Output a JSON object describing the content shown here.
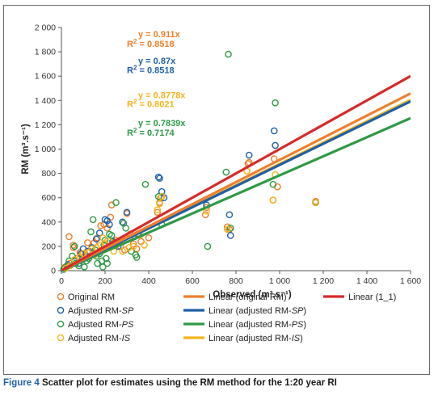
{
  "caption": {
    "figure_label": "Figure 4",
    "text": "Scatter plot for estimates using the RM method for the 1:20 year RI"
  },
  "chart_data": {
    "type": "scatter",
    "xlabel": "Observed (m³.s⁻¹)",
    "ylabel": "RM (m³.s⁻¹)",
    "xlim": [
      0,
      1600
    ],
    "ylim": [
      0,
      2000
    ],
    "x_ticks": [
      0,
      200,
      400,
      600,
      800,
      1000,
      1200,
      1400,
      1600
    ],
    "x_tick_labels": [
      "0",
      "200",
      "400",
      "600",
      "800",
      "1 000",
      "1 200",
      "1 400",
      "1 600"
    ],
    "y_ticks": [
      0,
      200,
      400,
      600,
      800,
      1000,
      1200,
      1400,
      1600,
      1800,
      2000
    ],
    "y_tick_labels": [
      "0",
      "200",
      "400",
      "600",
      "800",
      "1 000",
      "1 200",
      "1 400",
      "1 600",
      "1 800",
      "2 000"
    ],
    "grid": false,
    "legend_position": "bottom",
    "colors": {
      "original": "#ee7f2d",
      "sp": "#1f5fa6",
      "ps": "#2f9a46",
      "is": "#f4b41c",
      "line_1_1": "#d62b2b",
      "frame": "#6a6a6a"
    },
    "annotations": [
      {
        "eq": "y = 0.911x",
        "r2_label": "R",
        "r2_sup": "2",
        "r2_val": " = 0.8518",
        "series": "original"
      },
      {
        "eq": "y = 0.87x",
        "r2_label": "R",
        "r2_sup": "2",
        "r2_val": " = 0.8518",
        "series": "sp"
      },
      {
        "eq": "y = 0.8778x",
        "r2_label": "R",
        "r2_sup": "2",
        "r2_val": " = 0.8021",
        "series": "is"
      },
      {
        "eq": "y = 0.7839x",
        "r2_label": "R",
        "r2_sup": "2",
        "r2_val": " = 0.7174",
        "series": "ps"
      }
    ],
    "series": [
      {
        "name": "Original RM",
        "key": "original",
        "points": [
          [
            12,
            25
          ],
          [
            25,
            40
          ],
          [
            40,
            60
          ],
          [
            55,
            190
          ],
          [
            70,
            100
          ],
          [
            85,
            150
          ],
          [
            95,
            140
          ],
          [
            110,
            130
          ],
          [
            130,
            160
          ],
          [
            150,
            230
          ],
          [
            165,
            270
          ],
          [
            180,
            370
          ],
          [
            195,
            380
          ],
          [
            210,
            350
          ],
          [
            225,
            440
          ],
          [
            230,
            540
          ],
          [
            250,
            250
          ],
          [
            270,
            200
          ],
          [
            290,
            170
          ],
          [
            300,
            470
          ],
          [
            315,
            300
          ],
          [
            330,
            220
          ],
          [
            345,
            180
          ],
          [
            365,
            240
          ],
          [
            400,
            270
          ],
          [
            440,
            480
          ],
          [
            450,
            560
          ],
          [
            455,
            600
          ],
          [
            660,
            460
          ],
          [
            665,
            520
          ],
          [
            760,
            360
          ],
          [
            770,
            340
          ],
          [
            855,
            880
          ],
          [
            860,
            890
          ],
          [
            970,
            580
          ],
          [
            975,
            920
          ],
          [
            990,
            690
          ],
          [
            1165,
            570
          ],
          [
            35,
            280
          ],
          [
            55,
            210
          ],
          [
            120,
            230
          ]
        ]
      },
      {
        "name": "Adjusted RM-SP",
        "key": "sp",
        "points": [
          [
            15,
            20
          ],
          [
            30,
            50
          ],
          [
            60,
            80
          ],
          [
            80,
            60
          ],
          [
            100,
            180
          ],
          [
            120,
            160
          ],
          [
            140,
            190
          ],
          [
            160,
            260
          ],
          [
            175,
            310
          ],
          [
            200,
            420
          ],
          [
            210,
            410
          ],
          [
            235,
            240
          ],
          [
            260,
            200
          ],
          [
            280,
            400
          ],
          [
            300,
            480
          ],
          [
            335,
            280
          ],
          [
            350,
            300
          ],
          [
            445,
            770
          ],
          [
            450,
            760
          ],
          [
            460,
            650
          ],
          [
            470,
            600
          ],
          [
            665,
            540
          ],
          [
            770,
            460
          ],
          [
            775,
            290
          ],
          [
            860,
            950
          ],
          [
            975,
            1150
          ],
          [
            980,
            1030
          ],
          [
            1165,
            560
          ],
          [
            90,
            140
          ],
          [
            220,
            380
          ]
        ]
      },
      {
        "name": "Adjusted RM-PS",
        "key": "ps",
        "points": [
          [
            10,
            10
          ],
          [
            20,
            30
          ],
          [
            35,
            80
          ],
          [
            50,
            120
          ],
          [
            65,
            60
          ],
          [
            80,
            40
          ],
          [
            95,
            90
          ],
          [
            105,
            30
          ],
          [
            115,
            80
          ],
          [
            125,
            100
          ],
          [
            135,
            320
          ],
          [
            145,
            420
          ],
          [
            155,
            170
          ],
          [
            165,
            60
          ],
          [
            175,
            140
          ],
          [
            185,
            80
          ],
          [
            190,
            30
          ],
          [
            195,
            210
          ],
          [
            200,
            250
          ],
          [
            205,
            100
          ],
          [
            210,
            60
          ],
          [
            220,
            300
          ],
          [
            230,
            290
          ],
          [
            240,
            230
          ],
          [
            250,
            560
          ],
          [
            265,
            230
          ],
          [
            285,
            390
          ],
          [
            295,
            350
          ],
          [
            320,
            160
          ],
          [
            340,
            130
          ],
          [
            345,
            110
          ],
          [
            385,
            710
          ],
          [
            445,
            610
          ],
          [
            460,
            380
          ],
          [
            670,
            200
          ],
          [
            755,
            810
          ],
          [
            765,
            1780
          ],
          [
            775,
            350
          ],
          [
            970,
            710
          ],
          [
            980,
            1380
          ],
          [
            1165,
            560
          ],
          [
            60,
            200
          ],
          [
            160,
            120
          ]
        ]
      },
      {
        "name": "Adjusted RM-IS",
        "key": "is",
        "points": [
          [
            20,
            20
          ],
          [
            40,
            40
          ],
          [
            60,
            90
          ],
          [
            85,
            110
          ],
          [
            100,
            140
          ],
          [
            120,
            150
          ],
          [
            140,
            180
          ],
          [
            160,
            190
          ],
          [
            180,
            210
          ],
          [
            200,
            220
          ],
          [
            220,
            240
          ],
          [
            240,
            160
          ],
          [
            260,
            230
          ],
          [
            280,
            160
          ],
          [
            310,
            190
          ],
          [
            330,
            200
          ],
          [
            360,
            290
          ],
          [
            380,
            210
          ],
          [
            440,
            500
          ],
          [
            450,
            550
          ],
          [
            460,
            610
          ],
          [
            665,
            490
          ],
          [
            760,
            340
          ],
          [
            850,
            820
          ],
          [
            970,
            580
          ],
          [
            980,
            790
          ],
          [
            1165,
            560
          ],
          [
            150,
            130
          ],
          [
            190,
            270
          ]
        ]
      }
    ],
    "lines": [
      {
        "name": "Linear (original RM)",
        "key": "original",
        "slope": 0.911
      },
      {
        "name": "Linear (adjusted RM-SP)",
        "key": "sp",
        "slope": 0.87
      },
      {
        "name": "Linear (adjusted RM-PS)",
        "key": "ps",
        "slope": 0.7839
      },
      {
        "name": "Linear (adjusted RM-IS)",
        "key": "is",
        "slope": 0.8778
      },
      {
        "name": "Linear (1_1)",
        "key": "line_1_1",
        "slope": 1.0
      }
    ],
    "legend": {
      "markers": [
        {
          "label": "Original RM",
          "key": "original"
        },
        {
          "label": "Adjusted RM-",
          "italic": "SP",
          "key": "sp"
        },
        {
          "label": "Adjusted RM-",
          "italic": "PS",
          "key": "ps"
        },
        {
          "label": "Adjusted RM-",
          "italic": "IS",
          "key": "is"
        }
      ],
      "lines": [
        {
          "label": "Linear (original RM)",
          "key": "original"
        },
        {
          "label": "Linear (adjusted RM-",
          "italic": "SP",
          "suffix": ")",
          "key": "sp"
        },
        {
          "label": "Linear (adjusted RM-",
          "italic": "PS",
          "suffix": ")",
          "key": "ps"
        },
        {
          "label": "Linear (adjusted RM-",
          "italic": "IS",
          "suffix": ")",
          "key": "is"
        }
      ],
      "extra": {
        "label": "Linear (1_1)",
        "key": "line_1_1"
      }
    }
  }
}
